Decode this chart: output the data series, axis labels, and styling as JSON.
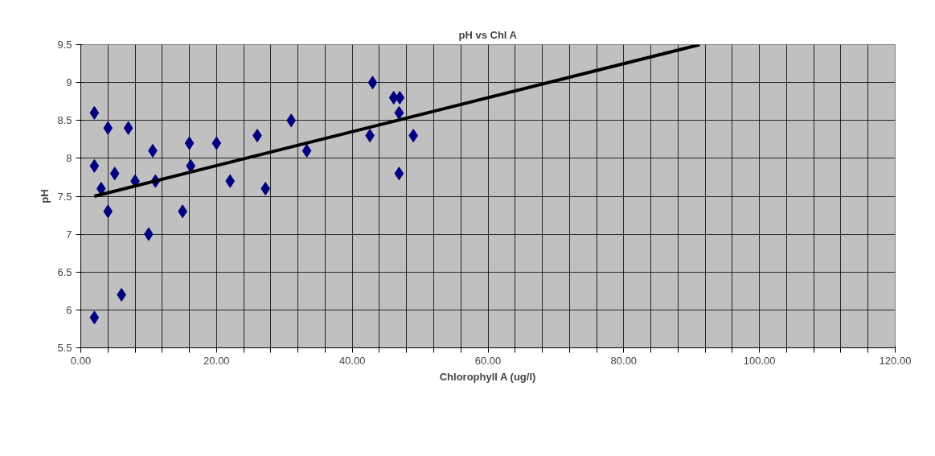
{
  "chart_data": {
    "type": "scatter",
    "title": "pH vs Chl A",
    "xlabel": "Chlorophyll A (ug/l)",
    "ylabel": "pH",
    "xlim": [
      0,
      120
    ],
    "ylim": [
      5.5,
      9.5
    ],
    "xticks": [
      {
        "value": 0,
        "label": "0.00"
      },
      {
        "value": 4,
        "label": null
      },
      {
        "value": 8,
        "label": null
      },
      {
        "value": 12,
        "label": null
      },
      {
        "value": 16,
        "label": null
      },
      {
        "value": 20,
        "label": "20.00"
      },
      {
        "value": 24,
        "label": null
      },
      {
        "value": 28,
        "label": null
      },
      {
        "value": 32,
        "label": null
      },
      {
        "value": 36,
        "label": null
      },
      {
        "value": 40,
        "label": "40.00"
      },
      {
        "value": 44,
        "label": null
      },
      {
        "value": 48,
        "label": null
      },
      {
        "value": 52,
        "label": null
      },
      {
        "value": 56,
        "label": null
      },
      {
        "value": 60,
        "label": "60.00"
      },
      {
        "value": 64,
        "label": null
      },
      {
        "value": 68,
        "label": null
      },
      {
        "value": 72,
        "label": null
      },
      {
        "value": 76,
        "label": null
      },
      {
        "value": 80,
        "label": "80.00"
      },
      {
        "value": 84,
        "label": null
      },
      {
        "value": 88,
        "label": null
      },
      {
        "value": 92,
        "label": null
      },
      {
        "value": 96,
        "label": null
      },
      {
        "value": 100,
        "label": "100.00"
      },
      {
        "value": 104,
        "label": null
      },
      {
        "value": 108,
        "label": null
      },
      {
        "value": 112,
        "label": null
      },
      {
        "value": 116,
        "label": null
      },
      {
        "value": 120,
        "label": "120.00"
      }
    ],
    "yticks": [
      5.5,
      6,
      6.5,
      7,
      7.5,
      8,
      8.5,
      9,
      9.5
    ],
    "grid": true,
    "series": [
      {
        "marker": "diamond",
        "color": "#000080",
        "x": [
          2,
          4,
          7,
          2,
          3,
          5,
          4,
          8,
          10,
          6,
          2,
          10.6,
          11,
          15,
          16,
          16.2,
          20,
          22,
          26,
          27.2,
          31,
          33.3,
          43,
          46.1,
          47,
          46.9,
          42.6,
          49,
          46.9
        ],
        "values": [
          8.6,
          8.4,
          8.4,
          7.9,
          7.6,
          7.8,
          7.3,
          7.7,
          7.0,
          6.2,
          5.9,
          8.1,
          7.7,
          7.3,
          8.2,
          7.9,
          8.2,
          7.7,
          8.3,
          7.6,
          8.5,
          8.1,
          9.0,
          8.8,
          8.8,
          8.6,
          8.3,
          8.3,
          7.8
        ]
      },
      {
        "type": "line",
        "line_style": "solid",
        "color": "#000000",
        "x": [
          2,
          91.2
        ],
        "values": [
          7.5,
          9.5
        ]
      }
    ]
  }
}
